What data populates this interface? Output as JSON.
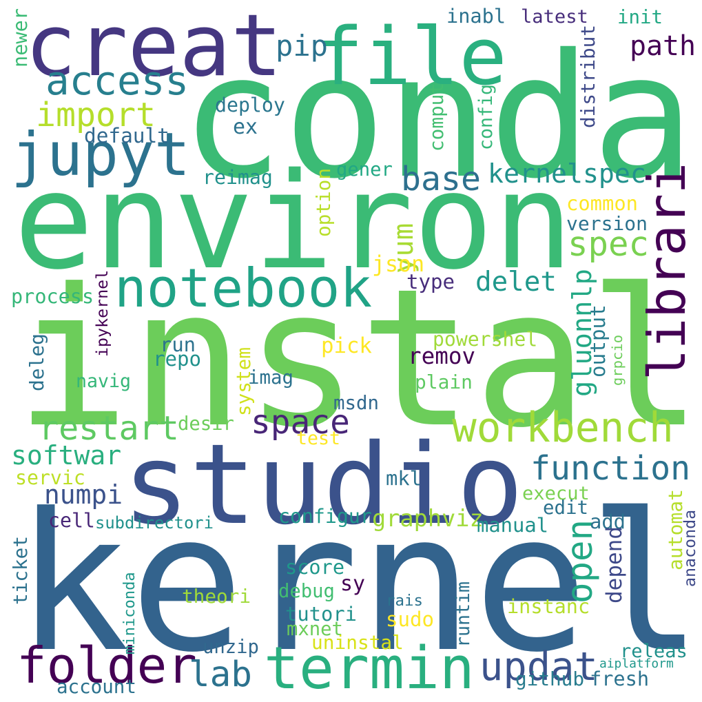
{
  "words": [
    {
      "text": "instal",
      "color": "#6ccd5a",
      "vertical": false
    },
    {
      "text": "kernel",
      "color": "#33638d",
      "vertical": false
    },
    {
      "text": "conda",
      "color": "#3bbb75",
      "vertical": false
    },
    {
      "text": "environ",
      "color": "#3bbb75",
      "vertical": false
    },
    {
      "text": "studio",
      "color": "#3b528b",
      "vertical": false
    },
    {
      "text": "creat",
      "color": "#453781",
      "vertical": false
    },
    {
      "text": "file",
      "color": "#2ab07f",
      "vertical": false
    },
    {
      "text": "termin",
      "color": "#29af7f",
      "vertical": false
    },
    {
      "text": "folder",
      "color": "#440154",
      "vertical": false
    },
    {
      "text": "notebook",
      "color": "#20a386",
      "vertical": false
    },
    {
      "text": "jupyt",
      "color": "#2c728e",
      "vertical": false
    },
    {
      "text": "librari",
      "color": "#440154",
      "vertical": true
    },
    {
      "text": "workbench",
      "color": "#a0da39",
      "vertical": false
    },
    {
      "text": "updat",
      "color": "#3b528b",
      "vertical": false
    },
    {
      "text": "access",
      "color": "#277f8e",
      "vertical": false
    },
    {
      "text": "function",
      "color": "#2c728e",
      "vertical": false
    },
    {
      "text": "restart",
      "color": "#5ec962",
      "vertical": false
    },
    {
      "text": "space",
      "color": "#482677",
      "vertical": false
    },
    {
      "text": "import",
      "color": "#b5de2b",
      "vertical": false
    },
    {
      "text": "open",
      "color": "#22a884",
      "vertical": true
    },
    {
      "text": "base",
      "color": "#2d708e",
      "vertical": false
    },
    {
      "text": "spec",
      "color": "#7ad151",
      "vertical": false
    },
    {
      "text": "lab",
      "color": "#2c728e",
      "vertical": false
    },
    {
      "text": "delet",
      "color": "#1f988b",
      "vertical": false
    },
    {
      "text": "kernelspec",
      "color": "#21918c",
      "vertical": false
    },
    {
      "text": "softwar",
      "color": "#29af7f",
      "vertical": false
    },
    {
      "text": "pip",
      "color": "#2c728e",
      "vertical": false
    },
    {
      "text": "path",
      "color": "#440154",
      "vertical": false
    },
    {
      "text": "numpi",
      "color": "#3b528b",
      "vertical": false
    },
    {
      "text": "gluonnlp",
      "color": "#22a884",
      "vertical": true
    },
    {
      "text": "inabl",
      "color": "#2c728e",
      "vertical": false
    },
    {
      "text": "latest",
      "color": "#472d7b",
      "vertical": false
    },
    {
      "text": "init",
      "color": "#22a884",
      "vertical": false
    },
    {
      "text": "newer",
      "color": "#3bbb75",
      "vertical": true
    },
    {
      "text": "distribut",
      "color": "#3e4989",
      "vertical": true
    },
    {
      "text": "config",
      "color": "#35b779",
      "vertical": true
    },
    {
      "text": "comput",
      "color": "#42be71",
      "vertical": true
    },
    {
      "text": "deploy",
      "color": "#2a768e",
      "vertical": false
    },
    {
      "text": "ex",
      "color": "#2c728e",
      "vertical": false
    },
    {
      "text": "default",
      "color": "#31688e",
      "vertical": false
    },
    {
      "text": "gener",
      "color": "#22a884",
      "vertical": false
    },
    {
      "text": "reimag",
      "color": "#21918c",
      "vertical": false
    },
    {
      "text": "option",
      "color": "#b8de29",
      "vertical": true
    },
    {
      "text": "common",
      "color": "#fde725",
      "vertical": false
    },
    {
      "text": "version",
      "color": "#2c728e",
      "vertical": false
    },
    {
      "text": "yum",
      "color": "#a8db34",
      "vertical": true
    },
    {
      "text": "json",
      "color": "#fde725",
      "vertical": false
    },
    {
      "text": "type",
      "color": "#472d7b",
      "vertical": false
    },
    {
      "text": "ipykernel",
      "color": "#440154",
      "vertical": true
    },
    {
      "text": "process",
      "color": "#35b779",
      "vertical": false
    },
    {
      "text": "output",
      "color": "#287c8e",
      "vertical": true
    },
    {
      "text": "grpcio",
      "color": "#6ccd5a",
      "vertical": true
    },
    {
      "text": "powershel",
      "color": "#a0da39",
      "vertical": false
    },
    {
      "text": "pick",
      "color": "#fde725",
      "vertical": false
    },
    {
      "text": "run",
      "color": "#2c728e",
      "vertical": false
    },
    {
      "text": "repo",
      "color": "#21918c",
      "vertical": false
    },
    {
      "text": "remov",
      "color": "#440154",
      "vertical": false
    },
    {
      "text": "deleg",
      "color": "#2c728e",
      "vertical": true
    },
    {
      "text": "system",
      "color": "#d0e11c",
      "vertical": true
    },
    {
      "text": "imag",
      "color": "#2c728e",
      "vertical": false
    },
    {
      "text": "navig",
      "color": "#35b779",
      "vertical": false
    },
    {
      "text": "plain",
      "color": "#5ec962",
      "vertical": false
    },
    {
      "text": "msdn",
      "color": "#31688e",
      "vertical": false
    },
    {
      "text": "desir",
      "color": "#6ccd5a",
      "vertical": false
    },
    {
      "text": "test",
      "color": "#fde725",
      "vertical": false
    },
    {
      "text": "servic",
      "color": "#bddf26",
      "vertical": false
    },
    {
      "text": "mkl",
      "color": "#2c728e",
      "vertical": false
    },
    {
      "text": "execut",
      "color": "#7ad151",
      "vertical": false
    },
    {
      "text": "automat",
      "color": "#b5de2b",
      "vertical": true
    },
    {
      "text": "anaconda",
      "color": "#3e4989",
      "vertical": true
    },
    {
      "text": "edit",
      "color": "#2c728e",
      "vertical": false
    },
    {
      "text": "add",
      "color": "#2c728e",
      "vertical": false
    },
    {
      "text": "cell",
      "color": "#482677",
      "vertical": false
    },
    {
      "text": "subdirectori",
      "color": "#21918c",
      "vertical": false
    },
    {
      "text": "configur",
      "color": "#1f988b",
      "vertical": false
    },
    {
      "text": "graphviz",
      "color": "#a0da39",
      "vertical": false
    },
    {
      "text": "manual",
      "color": "#21918c",
      "vertical": false
    },
    {
      "text": "depend",
      "color": "#3e4989",
      "vertical": true
    },
    {
      "text": "ticket",
      "color": "#2c728e",
      "vertical": true
    },
    {
      "text": "score",
      "color": "#1f988b",
      "vertical": false
    },
    {
      "text": "sy",
      "color": "#440154",
      "vertical": false
    },
    {
      "text": "debug",
      "color": "#42be71",
      "vertical": false
    },
    {
      "text": "theori",
      "color": "#a0da39",
      "vertical": false
    },
    {
      "text": "rais",
      "color": "#2c728e",
      "vertical": false
    },
    {
      "text": "runtim",
      "color": "#2c728e",
      "vertical": true
    },
    {
      "text": "miniconda",
      "color": "#1f988b",
      "vertical": true
    },
    {
      "text": "tutori",
      "color": "#21918c",
      "vertical": false
    },
    {
      "text": "instanc",
      "color": "#b5de2b",
      "vertical": false
    },
    {
      "text": "sudo",
      "color": "#fde725",
      "vertical": false
    },
    {
      "text": "mxnet",
      "color": "#6ccd5a",
      "vertical": false
    },
    {
      "text": "uninstal",
      "color": "#d8e219",
      "vertical": false
    },
    {
      "text": "unzip",
      "color": "#31688e",
      "vertical": false
    },
    {
      "text": "releas",
      "color": "#21918c",
      "vertical": false
    },
    {
      "text": "aiplatform",
      "color": "#1f988b",
      "vertical": false
    },
    {
      "text": "account",
      "color": "#2c728e",
      "vertical": false
    },
    {
      "text": "github",
      "color": "#287c8e",
      "vertical": false
    },
    {
      "text": "fresh",
      "color": "#2c728e",
      "vertical": false
    }
  ]
}
